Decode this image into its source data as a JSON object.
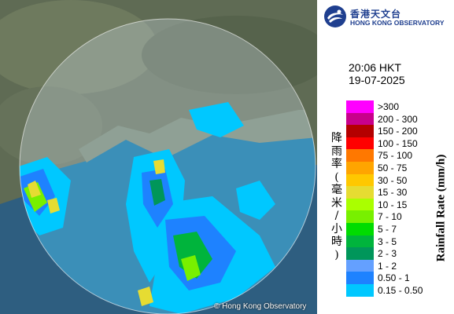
{
  "header": {
    "org_zh": "香港天文台",
    "org_en": "HONG KONG OBSERVATORY"
  },
  "timestamp": {
    "time": "20:06 HKT",
    "date": "19-07-2025"
  },
  "legend": {
    "title_en": "Rainfall Rate (mm/h)",
    "title_zh": "降雨率(毫米/小時)",
    "items": [
      {
        "label": ">300",
        "color": "#ff00ff"
      },
      {
        "label": "200 - 300",
        "color": "#c8008c"
      },
      {
        "label": "150 - 200",
        "color": "#b40000"
      },
      {
        "label": "100 - 150",
        "color": "#ff0000"
      },
      {
        "label": "75 - 100",
        "color": "#ff7800"
      },
      {
        "label": "50 - 75",
        "color": "#ffa500"
      },
      {
        "label": "30 - 50",
        "color": "#ffc800"
      },
      {
        "label": "15 - 30",
        "color": "#e6dc32"
      },
      {
        "label": "10 - 15",
        "color": "#aaff00"
      },
      {
        "label": "7 - 10",
        "color": "#78f000"
      },
      {
        "label": "5 - 7",
        "color": "#00dc00"
      },
      {
        "label": "3 - 5",
        "color": "#00b43c"
      },
      {
        "label": "2 - 3",
        "color": "#00965a"
      },
      {
        "label": "1 - 2",
        "color": "#64a0ff"
      },
      {
        "label": "0.50 - 1",
        "color": "#1e82ff"
      },
      {
        "label": "0.15 - 0.50",
        "color": "#00c8ff"
      }
    ]
  },
  "map": {
    "copyright": "© Hong Kong Observatory",
    "colors": {
      "land": "#5f6b54",
      "sea": "#2e7fa8",
      "range": "#ffffff"
    }
  }
}
